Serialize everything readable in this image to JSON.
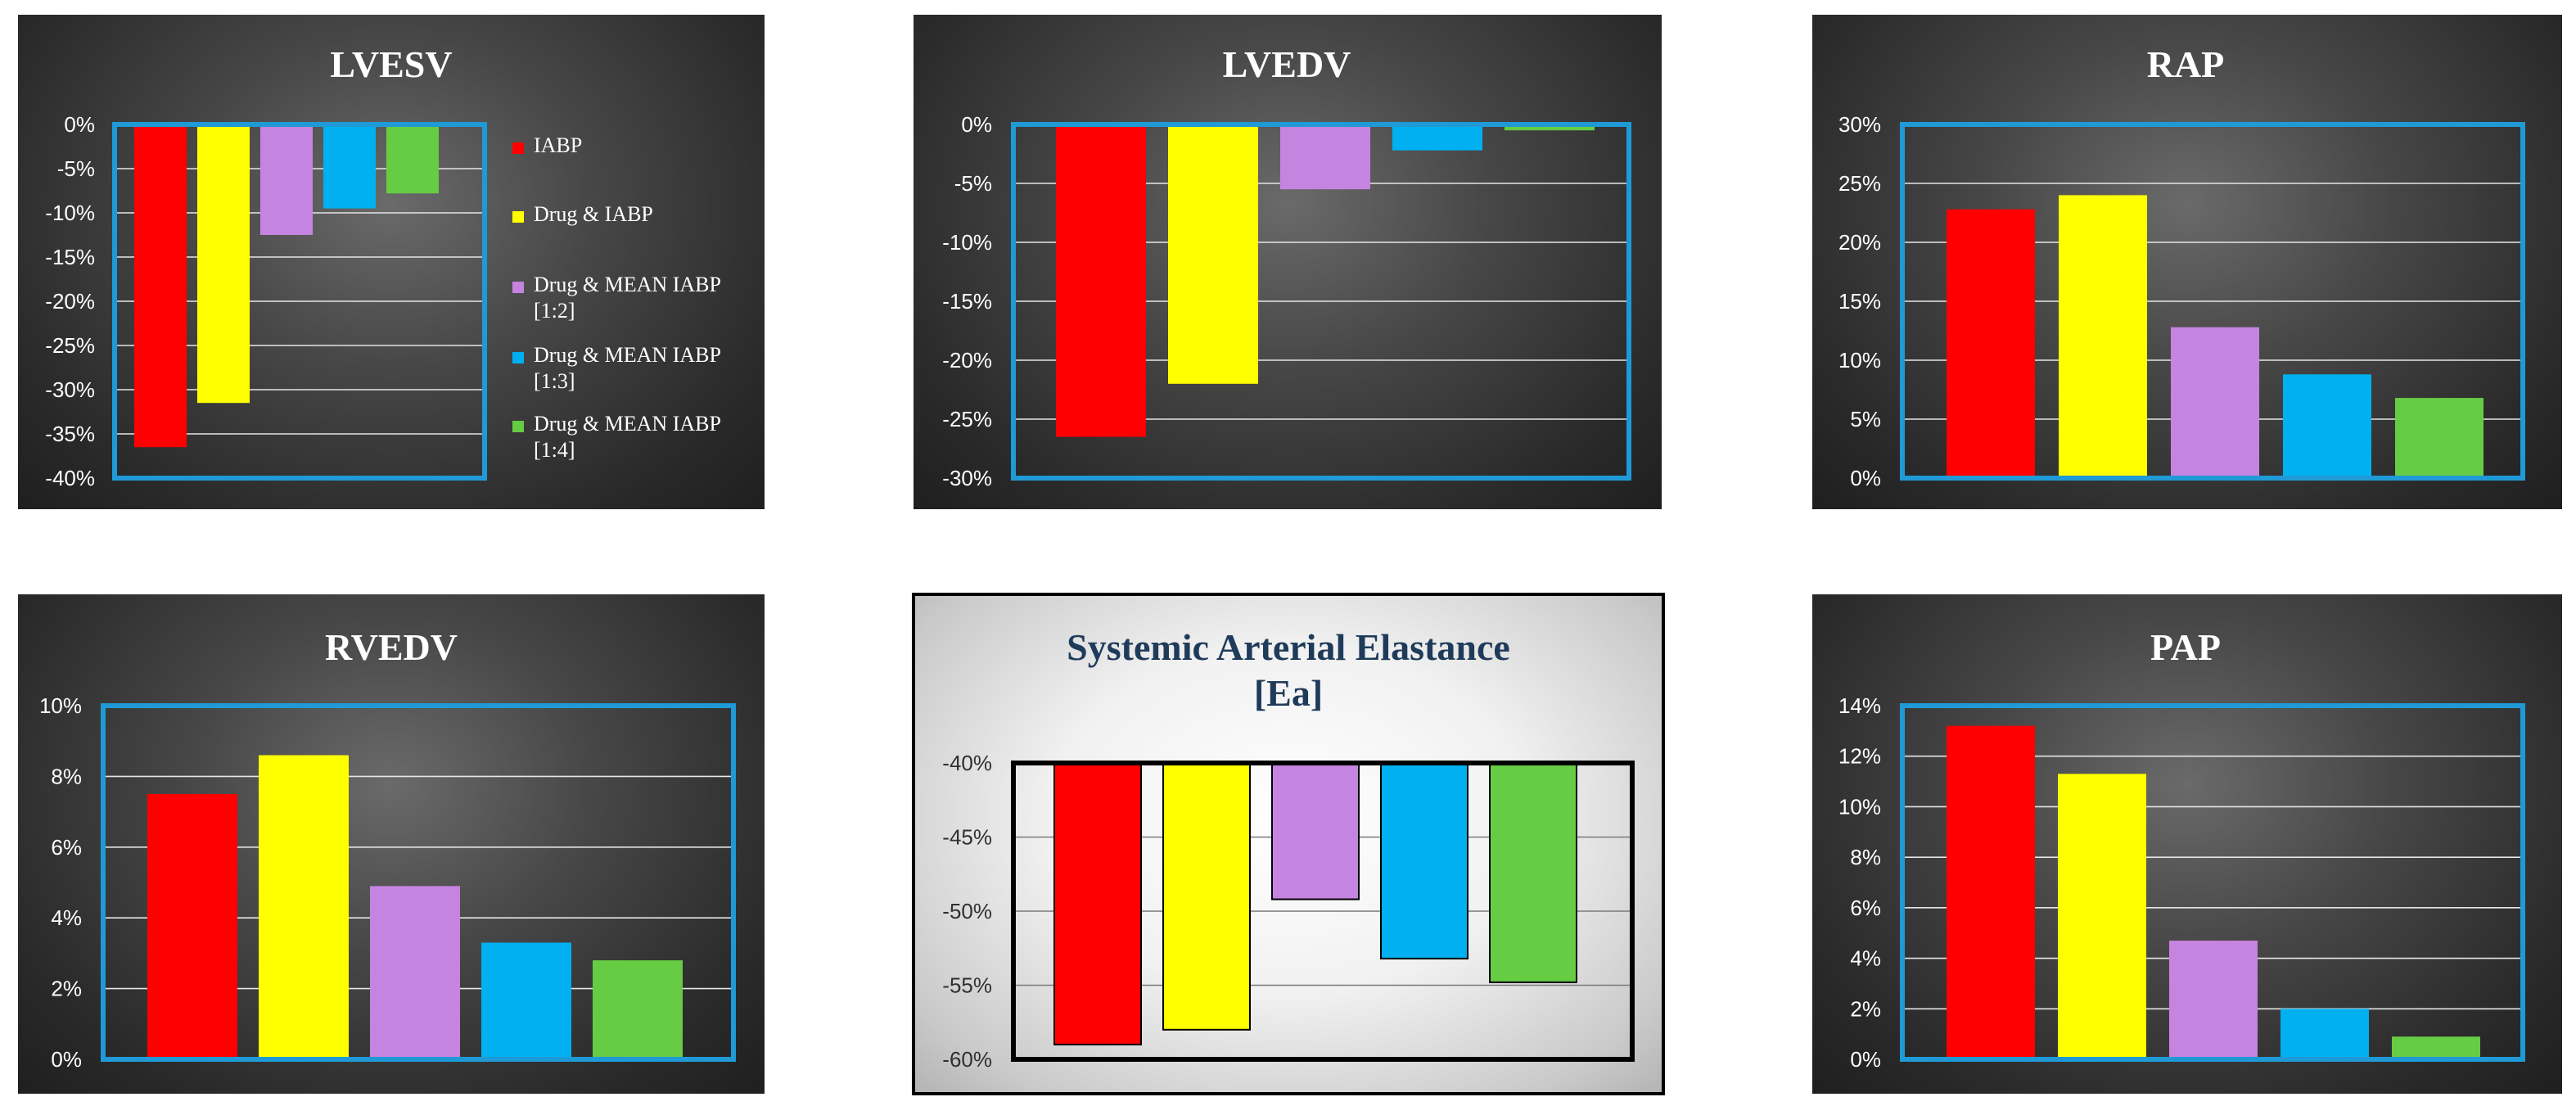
{
  "colors": {
    "iabp": "#ff0000",
    "drug_iabp": "#ffff00",
    "mean_1_2": "#c584e0",
    "mean_1_3": "#00b0f0",
    "mean_1_4": "#66cc44",
    "frame_blue": "#1f9ad6",
    "frame_black": "#000000"
  },
  "chart_data": [
    {
      "id": "lvesv",
      "type": "bar",
      "title": "LVESV",
      "categories": [
        "IABP",
        "Drug & IABP",
        "Drug & MEAN IABP [1:2]",
        "Drug & MEAN IABP [1:3]",
        "Drug & MEAN IABP [1:4]"
      ],
      "values": [
        -0.365,
        -0.315,
        -0.125,
        -0.095,
        -0.078
      ],
      "ylim": [
        -0.4,
        0.0
      ],
      "yticks": [
        0,
        -0.05,
        -0.1,
        -0.15,
        -0.2,
        -0.25,
        -0.3,
        -0.35,
        -0.4
      ],
      "ytick_labels": [
        "0%",
        "-5%",
        "-10%",
        "-15%",
        "-20%",
        "-25%",
        "-30%",
        "-35%",
        "-40%"
      ],
      "grid": true,
      "legend": {
        "position": "right",
        "entries": [
          {
            "lines": [
              "IABP"
            ]
          },
          {
            "lines": [
              "Drug & IABP"
            ]
          },
          {
            "lines": [
              "Drug & MEAN IABP",
              "[1:2]"
            ]
          },
          {
            "lines": [
              "Drug & MEAN IABP",
              "[1:3]"
            ]
          },
          {
            "lines": [
              "Drug & MEAN IABP",
              "[1:4]"
            ]
          }
        ]
      }
    },
    {
      "id": "lvedv",
      "type": "bar",
      "title": "LVEDV",
      "values": [
        -0.265,
        -0.22,
        -0.055,
        -0.022,
        -0.005
      ],
      "ylim": [
        -0.3,
        0.0
      ],
      "yticks": [
        0,
        -0.05,
        -0.1,
        -0.15,
        -0.2,
        -0.25,
        -0.3
      ],
      "ytick_labels": [
        "0%",
        "-5%",
        "-10%",
        "-15%",
        "-20%",
        "-25%",
        "-30%"
      ],
      "grid": true
    },
    {
      "id": "rap",
      "type": "bar",
      "title": "RAP",
      "values": [
        0.228,
        0.24,
        0.128,
        0.088,
        0.068
      ],
      "ylim": [
        0.0,
        0.3
      ],
      "yticks": [
        0,
        0.05,
        0.1,
        0.15,
        0.2,
        0.25,
        0.3
      ],
      "ytick_labels": [
        "0%",
        "5%",
        "10%",
        "15%",
        "20%",
        "25%",
        "30%"
      ],
      "grid": true
    },
    {
      "id": "rvedv",
      "type": "bar",
      "title": "RVEDV",
      "values": [
        0.075,
        0.086,
        0.049,
        0.033,
        0.028
      ],
      "ylim": [
        0.0,
        0.1
      ],
      "yticks": [
        0,
        0.02,
        0.04,
        0.06,
        0.08,
        0.1
      ],
      "ytick_labels": [
        "0%",
        "2%",
        "4%",
        "6%",
        "8%",
        "10%"
      ],
      "grid": true
    },
    {
      "id": "ea",
      "type": "bar",
      "title_lines": [
        "Systemic Arterial Elastance",
        "[Ea]"
      ],
      "values": [
        -0.59,
        -0.58,
        -0.492,
        -0.532,
        -0.548
      ],
      "ylim": [
        -0.6,
        -0.4
      ],
      "yticks": [
        -0.4,
        -0.45,
        -0.5,
        -0.55,
        -0.6
      ],
      "ytick_labels": [
        "-40%",
        "-45%",
        "-50%",
        "-55%",
        "-60%"
      ],
      "grid": true
    },
    {
      "id": "pap",
      "type": "bar",
      "title": "PAP",
      "values": [
        0.132,
        0.113,
        0.047,
        0.02,
        0.009
      ],
      "ylim": [
        0.0,
        0.14
      ],
      "yticks": [
        0,
        0.02,
        0.04,
        0.06,
        0.08,
        0.1,
        0.12,
        0.14
      ],
      "ytick_labels": [
        "0%",
        "2%",
        "4%",
        "6%",
        "8%",
        "10%",
        "12%",
        "14%"
      ],
      "grid": true
    }
  ]
}
